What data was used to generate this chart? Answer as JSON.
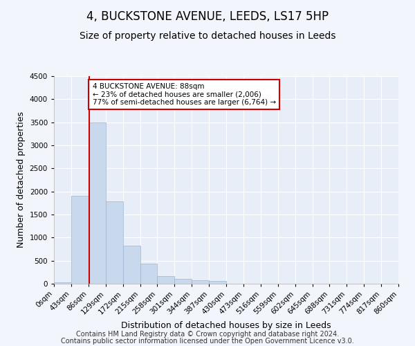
{
  "title": "4, BUCKSTONE AVENUE, LEEDS, LS17 5HP",
  "subtitle": "Size of property relative to detached houses in Leeds",
  "xlabel": "Distribution of detached houses by size in Leeds",
  "ylabel": "Number of detached properties",
  "bar_color": "#c8d9ee",
  "bar_edge_color": "#9ab4d4",
  "annotation_line_color": "#cc0000",
  "annotation_box_color": "#cc0000",
  "annotation_text": "4 BUCKSTONE AVENUE: 88sqm\n← 23% of detached houses are smaller (2,006)\n77% of semi-detached houses are larger (6,764) →",
  "property_sqm": 88,
  "footer_line1": "Contains HM Land Registry data © Crown copyright and database right 2024.",
  "footer_line2": "Contains public sector information licensed under the Open Government Licence v3.0.",
  "bin_edges": [
    0,
    43,
    86,
    129,
    172,
    215,
    258,
    301,
    344,
    387,
    430,
    473,
    516,
    559,
    602,
    645,
    688,
    731,
    774,
    817,
    860
  ],
  "bin_labels": [
    "0sqm",
    "43sqm",
    "86sqm",
    "129sqm",
    "172sqm",
    "215sqm",
    "258sqm",
    "301sqm",
    "344sqm",
    "387sqm",
    "430sqm",
    "473sqm",
    "516sqm",
    "559sqm",
    "602sqm",
    "645sqm",
    "688sqm",
    "731sqm",
    "774sqm",
    "817sqm",
    "860sqm"
  ],
  "counts": [
    30,
    1900,
    3500,
    1780,
    820,
    440,
    170,
    100,
    75,
    60,
    0,
    0,
    0,
    0,
    0,
    0,
    0,
    0,
    0,
    0
  ],
  "ylim": [
    0,
    4500
  ],
  "yticks": [
    0,
    500,
    1000,
    1500,
    2000,
    2500,
    3000,
    3500,
    4000,
    4500
  ],
  "background_color": "#f2f5fb",
  "plot_bg_color": "#e8eef7",
  "grid_color": "#ffffff",
  "title_fontsize": 12,
  "subtitle_fontsize": 10,
  "axis_label_fontsize": 9,
  "tick_fontsize": 7.5,
  "footer_fontsize": 7
}
